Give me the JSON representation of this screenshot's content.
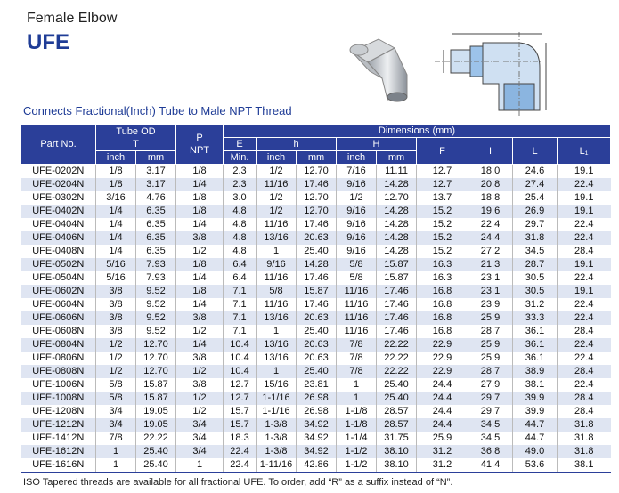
{
  "header": {
    "subtitle": "Female Elbow",
    "title": "UFE"
  },
  "description": "Connects Fractional(Inch) Tube to Male NPT Thread",
  "table": {
    "header": {
      "part_no": "Part No.",
      "tube_od": "Tube OD",
      "tube_t": "T",
      "p": "P",
      "npt": "NPT",
      "dimensions": "Dimensions (mm)",
      "e": "E",
      "e_min": "Min.",
      "h": "h",
      "H": "H",
      "f": "F",
      "i": "I",
      "l": "L",
      "l1": "L₁",
      "inch_1": "inch",
      "mm_1": "mm",
      "inch_2": "inch",
      "mm_2": "mm",
      "inch_3": "inch",
      "mm_3": "mm"
    },
    "rows": [
      [
        "UFE-0202N",
        "1/8",
        "3.17",
        "1/8",
        "2.3",
        "1/2",
        "12.70",
        "7/16",
        "11.11",
        "12.7",
        "18.0",
        "24.6",
        "19.1"
      ],
      [
        "UFE-0204N",
        "1/8",
        "3.17",
        "1/4",
        "2.3",
        "11/16",
        "17.46",
        "9/16",
        "14.28",
        "12.7",
        "20.8",
        "27.4",
        "22.4"
      ],
      [
        "UFE-0302N",
        "3/16",
        "4.76",
        "1/8",
        "3.0",
        "1/2",
        "12.70",
        "1/2",
        "12.70",
        "13.7",
        "18.8",
        "25.4",
        "19.1"
      ],
      [
        "UFE-0402N",
        "1/4",
        "6.35",
        "1/8",
        "4.8",
        "1/2",
        "12.70",
        "9/16",
        "14.28",
        "15.2",
        "19.6",
        "26.9",
        "19.1"
      ],
      [
        "UFE-0404N",
        "1/4",
        "6.35",
        "1/4",
        "4.8",
        "11/16",
        "17.46",
        "9/16",
        "14.28",
        "15.2",
        "22.4",
        "29.7",
        "22.4"
      ],
      [
        "UFE-0406N",
        "1/4",
        "6.35",
        "3/8",
        "4.8",
        "13/16",
        "20.63",
        "9/16",
        "14.28",
        "15.2",
        "24.4",
        "31.8",
        "22.4"
      ],
      [
        "UFE-0408N",
        "1/4",
        "6.35",
        "1/2",
        "4.8",
        "1",
        "25.40",
        "9/16",
        "14.28",
        "15.2",
        "27.2",
        "34.5",
        "28.4"
      ],
      [
        "UFE-0502N",
        "5/16",
        "7.93",
        "1/8",
        "6.4",
        "9/16",
        "14.28",
        "5/8",
        "15.87",
        "16.3",
        "21.3",
        "28.7",
        "19.1"
      ],
      [
        "UFE-0504N",
        "5/16",
        "7.93",
        "1/4",
        "6.4",
        "11/16",
        "17.46",
        "5/8",
        "15.87",
        "16.3",
        "23.1",
        "30.5",
        "22.4"
      ],
      [
        "UFE-0602N",
        "3/8",
        "9.52",
        "1/8",
        "7.1",
        "5/8",
        "15.87",
        "11/16",
        "17.46",
        "16.8",
        "23.1",
        "30.5",
        "19.1"
      ],
      [
        "UFE-0604N",
        "3/8",
        "9.52",
        "1/4",
        "7.1",
        "11/16",
        "17.46",
        "11/16",
        "17.46",
        "16.8",
        "23.9",
        "31.2",
        "22.4"
      ],
      [
        "UFE-0606N",
        "3/8",
        "9.52",
        "3/8",
        "7.1",
        "13/16",
        "20.63",
        "11/16",
        "17.46",
        "16.8",
        "25.9",
        "33.3",
        "22.4"
      ],
      [
        "UFE-0608N",
        "3/8",
        "9.52",
        "1/2",
        "7.1",
        "1",
        "25.40",
        "11/16",
        "17.46",
        "16.8",
        "28.7",
        "36.1",
        "28.4"
      ],
      [
        "UFE-0804N",
        "1/2",
        "12.70",
        "1/4",
        "10.4",
        "13/16",
        "20.63",
        "7/8",
        "22.22",
        "22.9",
        "25.9",
        "36.1",
        "22.4"
      ],
      [
        "UFE-0806N",
        "1/2",
        "12.70",
        "3/8",
        "10.4",
        "13/16",
        "20.63",
        "7/8",
        "22.22",
        "22.9",
        "25.9",
        "36.1",
        "22.4"
      ],
      [
        "UFE-0808N",
        "1/2",
        "12.70",
        "1/2",
        "10.4",
        "1",
        "25.40",
        "7/8",
        "22.22",
        "22.9",
        "28.7",
        "38.9",
        "28.4"
      ],
      [
        "UFE-1006N",
        "5/8",
        "15.87",
        "3/8",
        "12.7",
        "15/16",
        "23.81",
        "1",
        "25.40",
        "24.4",
        "27.9",
        "38.1",
        "22.4"
      ],
      [
        "UFE-1008N",
        "5/8",
        "15.87",
        "1/2",
        "12.7",
        "1-1/16",
        "26.98",
        "1",
        "25.40",
        "24.4",
        "29.7",
        "39.9",
        "28.4"
      ],
      [
        "UFE-1208N",
        "3/4",
        "19.05",
        "1/2",
        "15.7",
        "1-1/16",
        "26.98",
        "1-1/8",
        "28.57",
        "24.4",
        "29.7",
        "39.9",
        "28.4"
      ],
      [
        "UFE-1212N",
        "3/4",
        "19.05",
        "3/4",
        "15.7",
        "1-3/8",
        "34.92",
        "1-1/8",
        "28.57",
        "24.4",
        "34.5",
        "44.7",
        "31.8"
      ],
      [
        "UFE-1412N",
        "7/8",
        "22.22",
        "3/4",
        "18.3",
        "1-3/8",
        "34.92",
        "1-1/4",
        "31.75",
        "25.9",
        "34.5",
        "44.7",
        "31.8"
      ],
      [
        "UFE-1612N",
        "1",
        "25.40",
        "3/4",
        "22.4",
        "1-3/8",
        "34.92",
        "1-1/2",
        "38.10",
        "31.2",
        "36.8",
        "49.0",
        "31.8"
      ],
      [
        "UFE-1616N",
        "1",
        "25.40",
        "1",
        "22.4",
        "1-11/16",
        "42.86",
        "1-1/2",
        "38.10",
        "31.2",
        "41.4",
        "53.6",
        "38.1"
      ]
    ]
  },
  "footnote": "ISO Tapered  threads are available for all fractional UFE. To order, add “R” as a suffix instead of “N”."
}
